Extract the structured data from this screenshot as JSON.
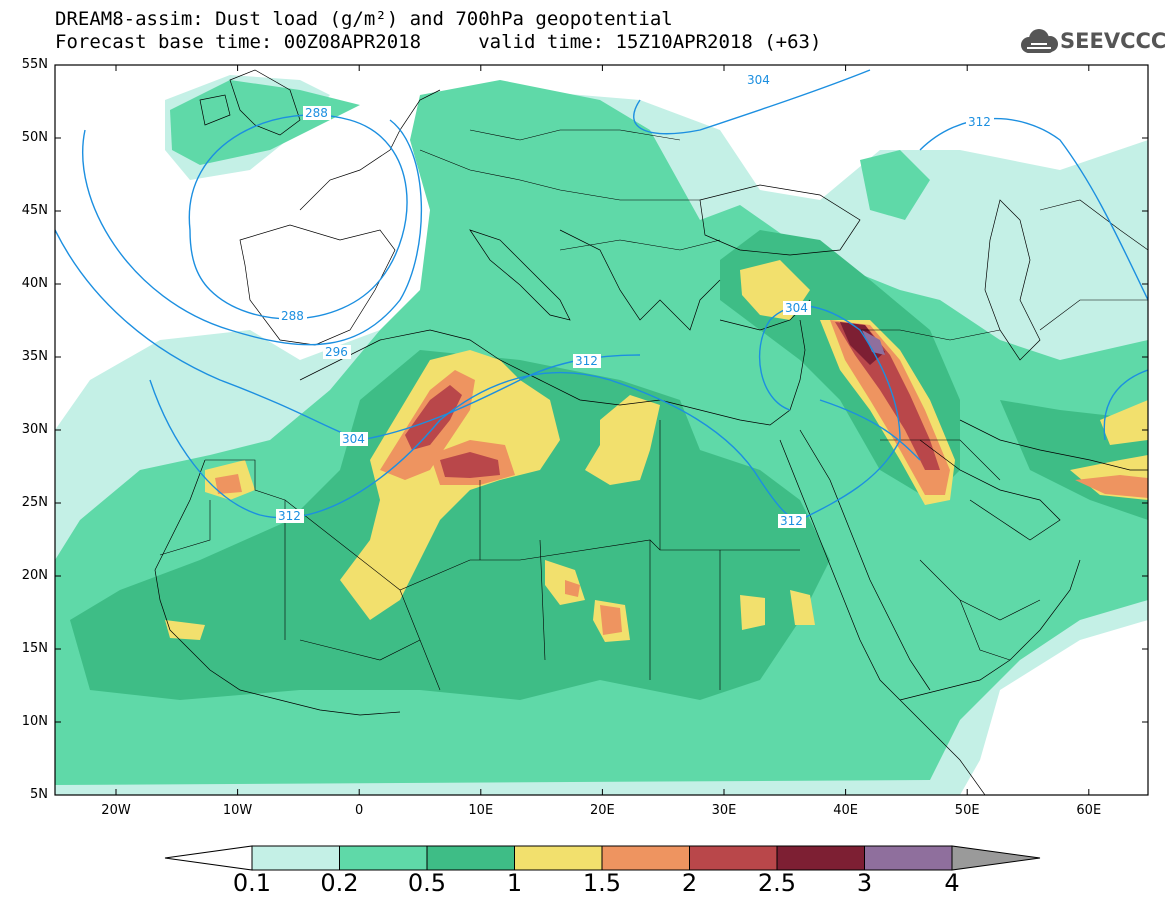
{
  "header": {
    "line1": "DREAM8-assim: Dust load (g/m²) and 700hPa geopotential",
    "line2": "Forecast base time: 00Z08APR2018     valid time: 15Z10APR2018 (+63)",
    "logo_text": "SEEVCCC"
  },
  "map": {
    "lat_labels": [
      "55N",
      "50N",
      "45N",
      "40N",
      "35N",
      "30N",
      "25N",
      "20N",
      "15N",
      "10N",
      "5N"
    ],
    "lon_labels": [
      "20W",
      "10W",
      "0",
      "10E",
      "20E",
      "30E",
      "40E",
      "50E",
      "60E"
    ],
    "contour_labels": [
      "288",
      "288",
      "296",
      "304",
      "304",
      "304",
      "312",
      "312",
      "312",
      "312"
    ]
  },
  "colorbar": {
    "ticks": [
      "0.1",
      "0.2",
      "0.5",
      "1",
      "1.5",
      "2",
      "2.5",
      "3",
      "4"
    ],
    "colors": [
      "#c4f0e6",
      "#5fd9a8",
      "#3ebd86",
      "#f2e06d",
      "#ee9460",
      "#b9474a",
      "#7d1f33",
      "#8f6f9d",
      "#9a9a9a"
    ],
    "open_end_color": "#ffffff"
  },
  "colors": {
    "land_base": "#ffffff",
    "contour_color": "#1c8fe0",
    "border_color": "#000000"
  }
}
